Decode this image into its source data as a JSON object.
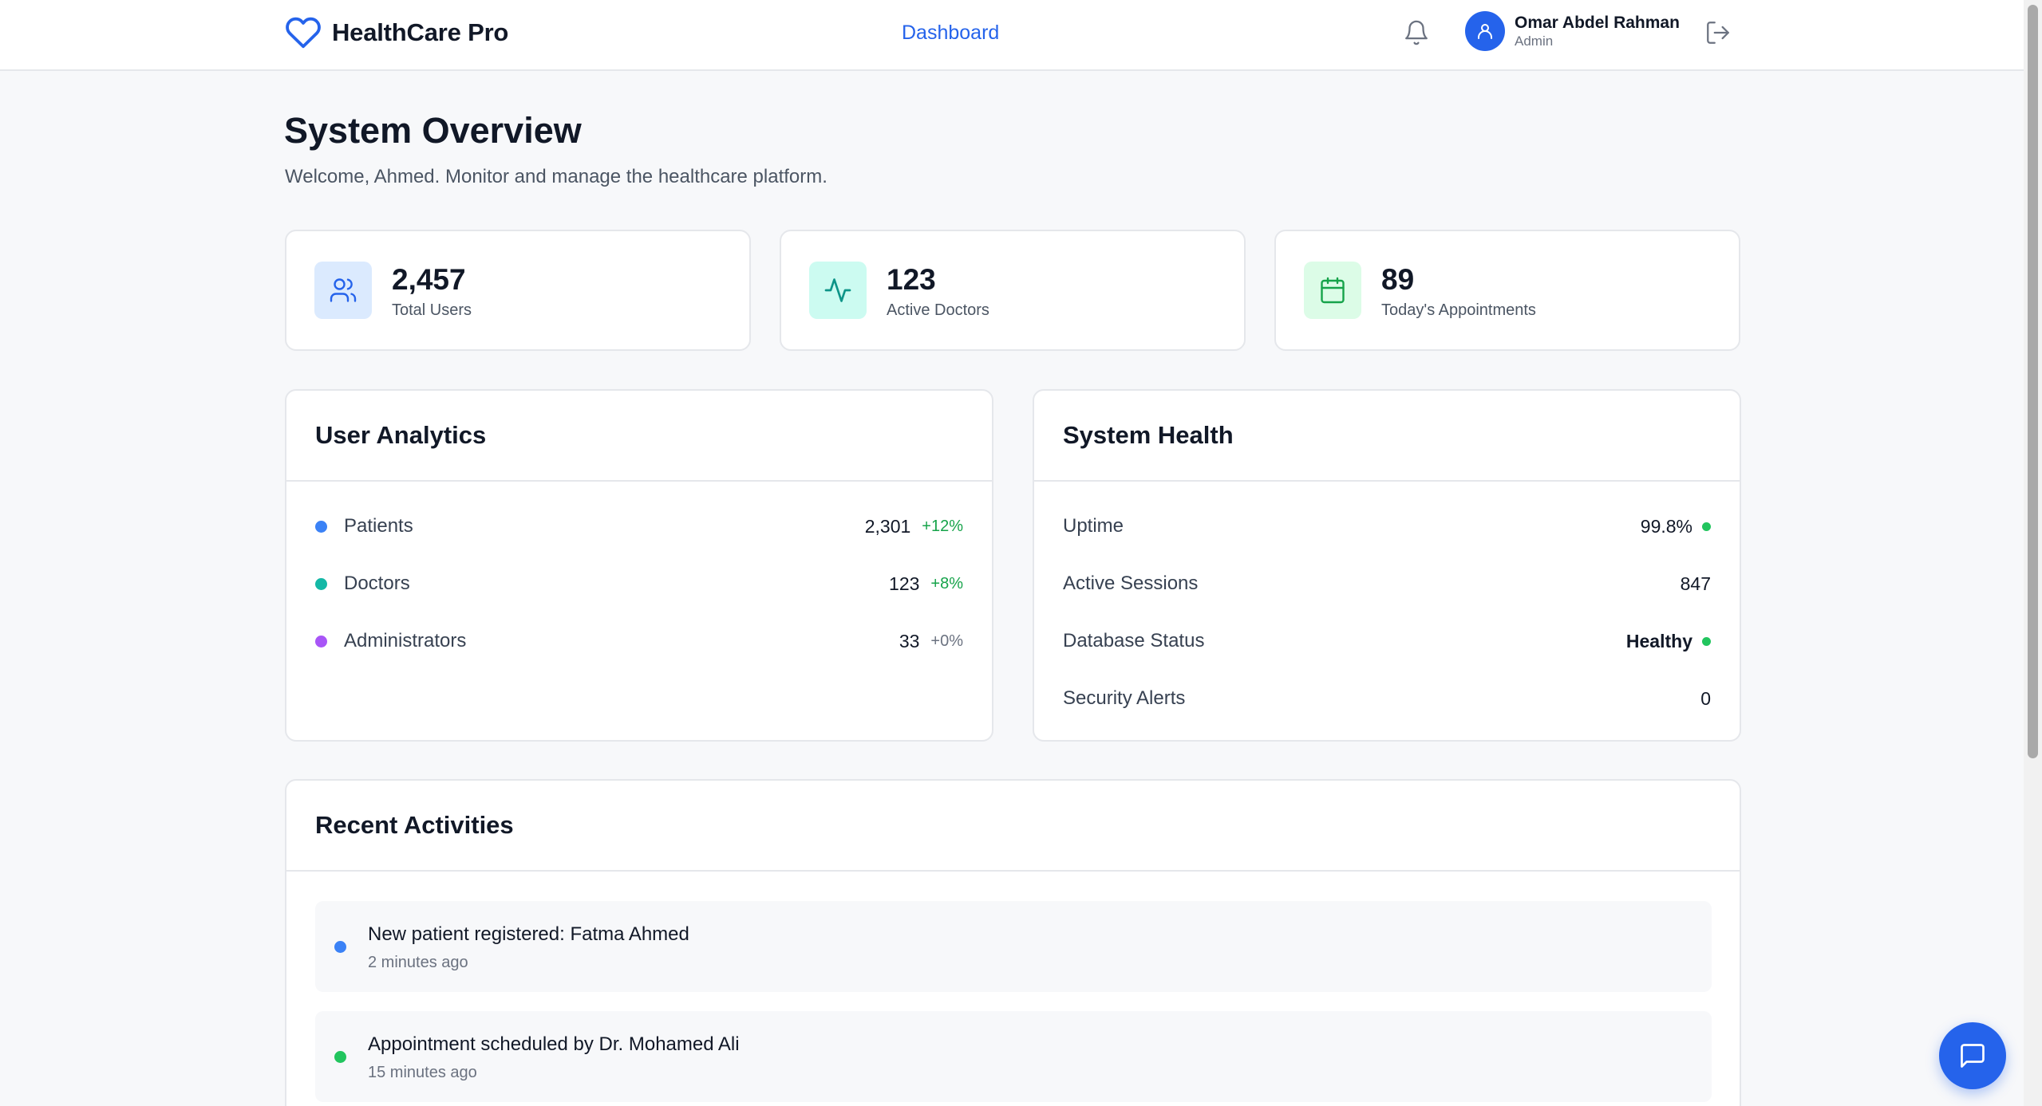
{
  "header": {
    "brand": "HealthCare Pro",
    "nav_dashboard": "Dashboard",
    "user_name": "Omar Abdel Rahman",
    "user_role": "Admin"
  },
  "page": {
    "title": "System Overview",
    "subtitle": "Welcome, Ahmed. Monitor and manage the healthcare platform."
  },
  "stats": [
    {
      "value": "2,457",
      "label": "Total Users",
      "icon": "users-icon"
    },
    {
      "value": "123",
      "label": "Active Doctors",
      "icon": "activity-icon"
    },
    {
      "value": "89",
      "label": "Today's Appointments",
      "icon": "calendar-icon"
    }
  ],
  "user_analytics": {
    "title": "User Analytics",
    "rows": [
      {
        "label": "Patients",
        "value": "2,301",
        "change": "+12%"
      },
      {
        "label": "Doctors",
        "value": "123",
        "change": "+8%"
      },
      {
        "label": "Administrators",
        "value": "33",
        "change": "+0%"
      }
    ]
  },
  "system_health": {
    "title": "System Health",
    "rows": [
      {
        "label": "Uptime",
        "value": "99.8%"
      },
      {
        "label": "Active Sessions",
        "value": "847"
      },
      {
        "label": "Database Status",
        "value": "Healthy"
      },
      {
        "label": "Security Alerts",
        "value": "0"
      }
    ]
  },
  "recent_activities": {
    "title": "Recent Activities",
    "items": [
      {
        "title": "New patient registered: Fatma Ahmed",
        "time": "2 minutes ago"
      },
      {
        "title": "Appointment scheduled by Dr. Mohamed Ali",
        "time": "15 minutes ago"
      }
    ]
  },
  "colors": {
    "primary": "#2563eb",
    "teal": "#14b8a6",
    "purple": "#a855f7",
    "green": "#22c55e",
    "positive_text": "#16a34a",
    "neutral_text": "#6b7280"
  }
}
